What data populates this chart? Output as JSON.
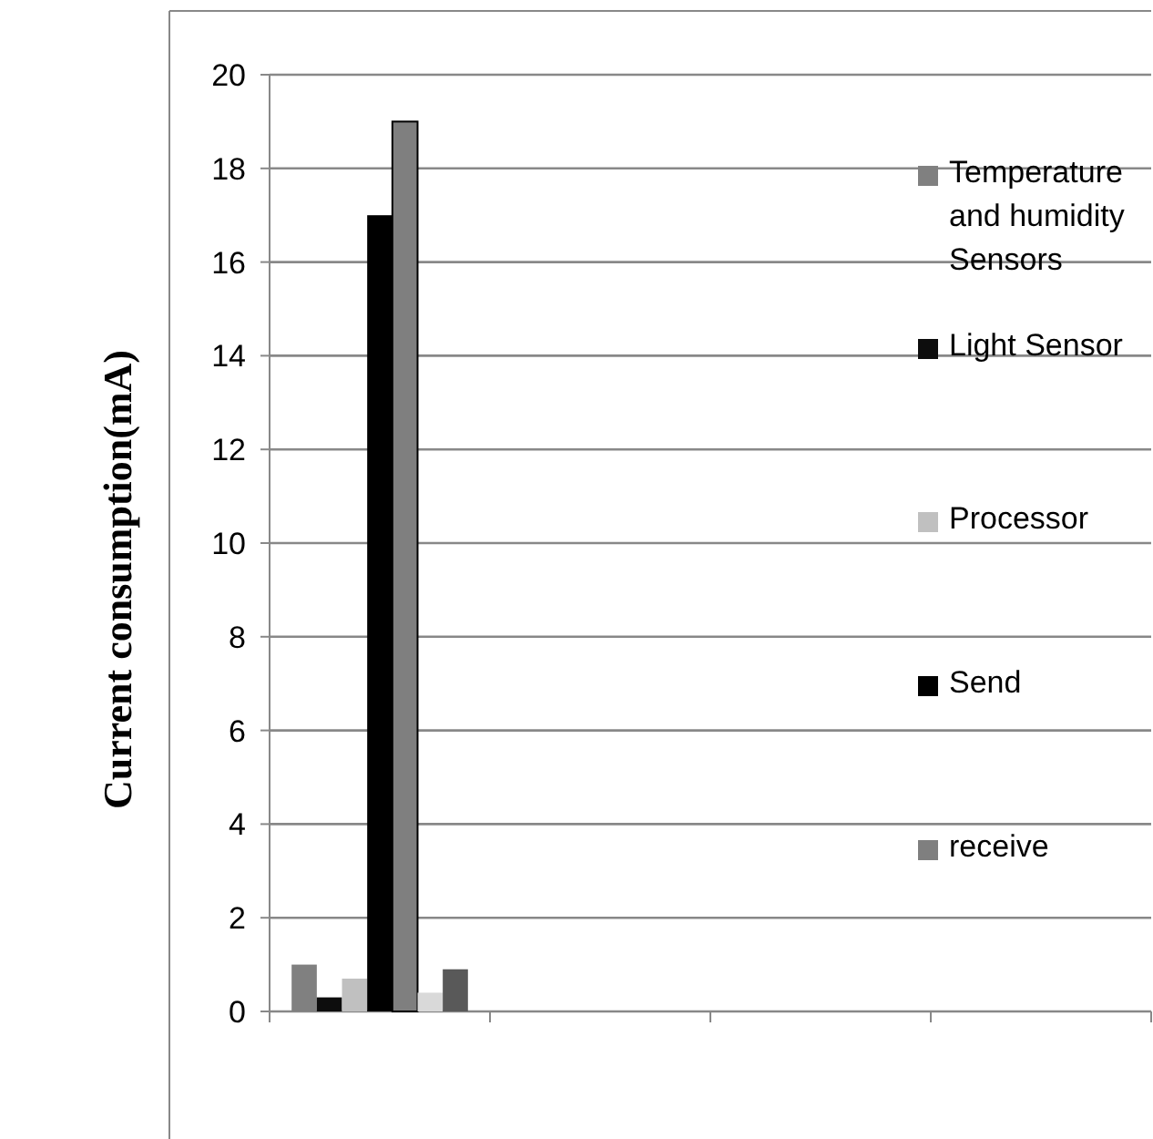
{
  "chart_data": {
    "type": "bar",
    "ylabel": "Current consumption(mA)",
    "categories": [
      null,
      null,
      null,
      null
    ],
    "series": [
      {
        "name": "Temperature and humidity Sensors",
        "color": "#808080",
        "values": [
          1.0,
          null,
          null,
          null
        ]
      },
      {
        "name": "Light Sensor",
        "color": "#0d0d0d",
        "values": [
          0.3,
          null,
          null,
          null
        ]
      },
      {
        "name": "Processor",
        "color": "#c0c0c0",
        "values": [
          0.7,
          null,
          null,
          null
        ]
      },
      {
        "name": "Send",
        "color": "#000000",
        "values": [
          17,
          null,
          null,
          null
        ]
      },
      {
        "name": "receive",
        "color": "#7f7f7f",
        "values": [
          19,
          null,
          null,
          null
        ]
      },
      {
        "color": "#d9d9d9",
        "values": [
          0.4,
          null,
          null,
          null
        ]
      },
      {
        "color": "#595959",
        "values": [
          0.9,
          null,
          null,
          null
        ]
      }
    ],
    "ylim": [
      0,
      20
    ],
    "yticks": [
      0,
      2,
      4,
      6,
      8,
      10,
      12,
      14,
      16,
      18,
      20
    ],
    "grid": "y",
    "legend": "right"
  }
}
